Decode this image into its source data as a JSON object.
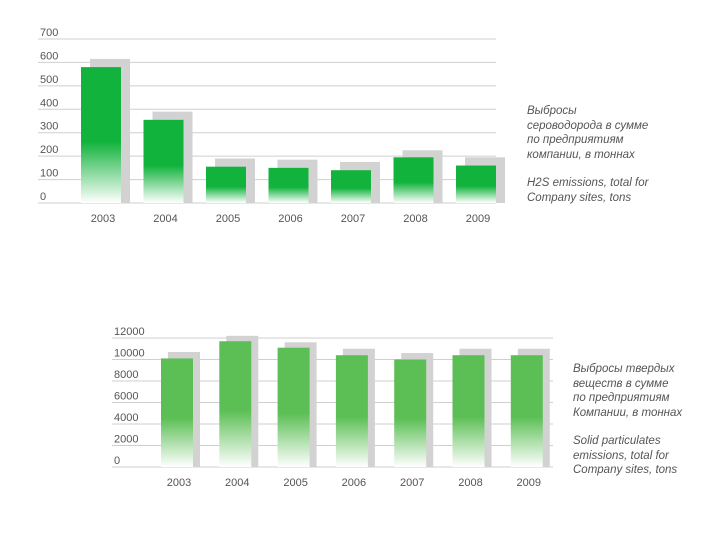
{
  "chart_data": [
    {
      "type": "bar",
      "categories": [
        "2003",
        "2004",
        "2005",
        "2006",
        "2007",
        "2008",
        "2009"
      ],
      "series": [
        {
          "values": [
            580,
            355,
            155,
            150,
            140,
            195,
            160
          ]
        },
        {
          "values": [
            615,
            390,
            190,
            185,
            175,
            225,
            195
          ]
        }
      ],
      "yticks": [
        0,
        100,
        200,
        300,
        400,
        500,
        600,
        700
      ],
      "ylim": [
        0,
        700
      ],
      "grid": true,
      "caption_ru": [
        "Выбросы",
        "сероводорода в сумме",
        "по предприятиям",
        "компании, в тоннах"
      ],
      "caption_en": [
        "H2S emissions, total for",
        "Company sites, tons"
      ]
    },
    {
      "type": "bar",
      "categories": [
        "2003",
        "2004",
        "2005",
        "2006",
        "2007",
        "2008",
        "2009"
      ],
      "series": [
        {
          "values": [
            10100,
            11700,
            11100,
            10400,
            10000,
            10400,
            10400
          ]
        },
        {
          "values": [
            10700,
            12200,
            11600,
            11000,
            10600,
            11000,
            11000
          ]
        }
      ],
      "yticks": [
        0,
        2000,
        4000,
        6000,
        8000,
        10000,
        12000
      ],
      "ylim": [
        0,
        12000
      ],
      "grid": true,
      "caption_ru": [
        "Выбросы твердых",
        "веществ в сумме",
        "по предприятиям",
        "Компании, в тоннах"
      ],
      "caption_en": [
        "Solid particulates",
        "emissions, total for",
        "Company sites, tons"
      ]
    }
  ],
  "colors": {
    "bar_top": "#12b33c",
    "bar_top_2": "#5cbf55",
    "bar_fade": "#ffffff",
    "shadow": "#d2d2d2",
    "grid": "#cfcfcf",
    "tick_text": "#555555"
  }
}
